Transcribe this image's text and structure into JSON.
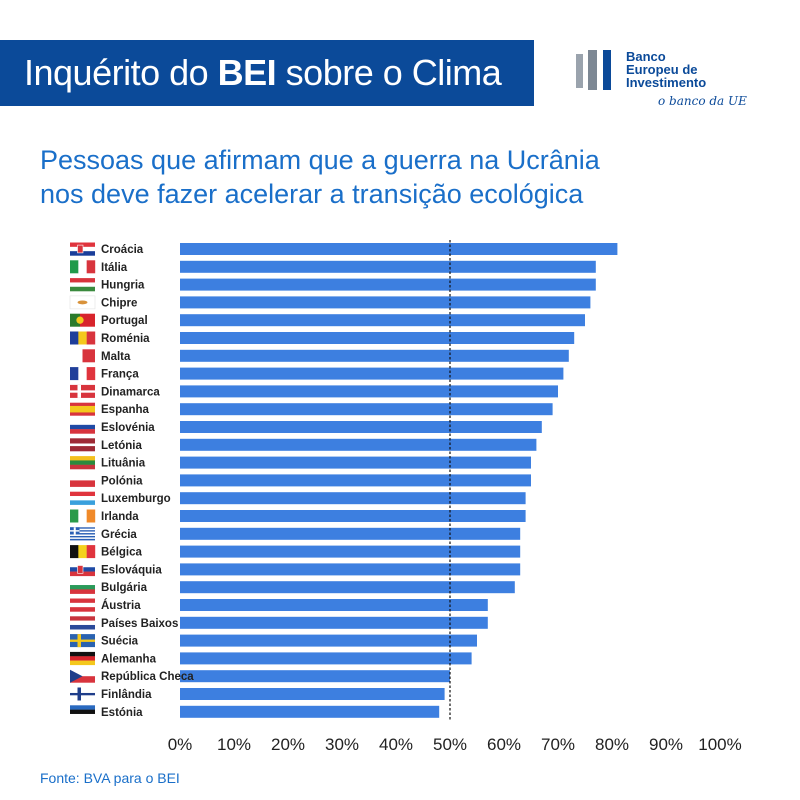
{
  "header": {
    "title_prefix": "Inquérito do ",
    "title_bold": "BEI",
    "title_suffix": " sobre o Clima"
  },
  "logo": {
    "line1": "Banco",
    "line2": "Europeu de",
    "line3": "Investimento",
    "tagline": "o banco da UE"
  },
  "subtitle": {
    "line1": "Pessoas que afirmam que a guerra na Ucrânia",
    "line2": "nos deve fazer acelerar a transição ecológica"
  },
  "source": "Fonte: BVA para o BEI",
  "colors": {
    "bar": "#3d7fe0",
    "brand": "#0b4a99",
    "text_blue": "#1a6fc9"
  },
  "chart_data": {
    "type": "bar",
    "orientation": "horizontal",
    "title": "Pessoas que afirmam que a guerra na Ucrânia nos deve fazer acelerar a transição ecológica",
    "categories": [
      "Croácia",
      "Itália",
      "Hungria",
      "Chipre",
      "Portugal",
      "Roménia",
      "Malta",
      "França",
      "Dinamarca",
      "Espanha",
      "Eslovénia",
      "Letónia",
      "Lituânia",
      "Polónia",
      "Luxemburgo",
      "Irlanda",
      "Grécia",
      "Bélgica",
      "Eslováquia",
      "Bulgária",
      "Áustria",
      "Países Baixos",
      "Suécia",
      "Alemanha",
      "República Checa",
      "Finlândia",
      "Estónia"
    ],
    "values": [
      81,
      77,
      77,
      76,
      75,
      73,
      72,
      71,
      70,
      69,
      67,
      66,
      65,
      65,
      64,
      64,
      63,
      63,
      63,
      62,
      57,
      57,
      55,
      54,
      50,
      49,
      48
    ],
    "xlim": [
      0,
      100
    ],
    "xticks": [
      "0%",
      "10%",
      "20%",
      "30%",
      "40%",
      "50%",
      "60%",
      "70%",
      "80%",
      "90%",
      "100%"
    ],
    "reference_line": 50,
    "grid": false,
    "legend": "none"
  }
}
